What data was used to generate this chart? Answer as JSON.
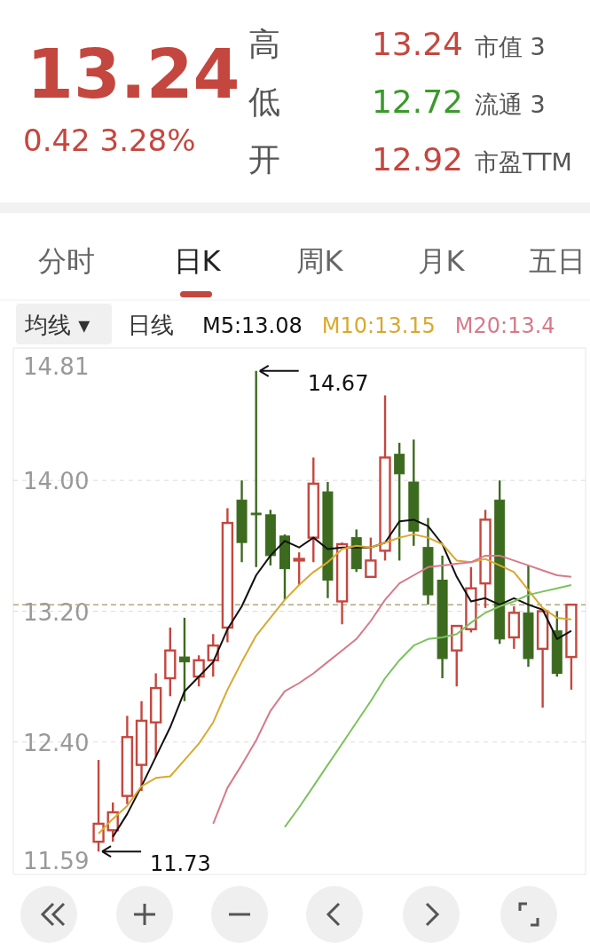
{
  "chart_data": {
    "type": "candlestick",
    "title": "13.24",
    "subtitle": "0.42  3.28%",
    "categories": [
      null,
      null,
      null,
      null,
      null,
      null,
      null,
      null,
      null,
      null,
      null,
      null,
      null,
      null,
      null,
      null,
      null,
      null,
      null,
      null,
      null,
      null,
      null,
      null,
      null,
      null,
      null,
      null,
      null,
      null,
      null,
      null,
      null,
      null
    ],
    "ohlc": [
      [
        11.79,
        12.29,
        11.73,
        11.9
      ],
      [
        11.86,
        12.03,
        11.79,
        11.97
      ],
      [
        12.07,
        12.56,
        12.02,
        12.43
      ],
      [
        12.26,
        12.65,
        12.1,
        12.53
      ],
      [
        12.52,
        12.82,
        12.31,
        12.73
      ],
      [
        12.79,
        13.1,
        12.68,
        12.96
      ],
      [
        12.92,
        13.16,
        12.65,
        12.89
      ],
      [
        12.8,
        12.93,
        12.74,
        12.9
      ],
      [
        12.9,
        13.06,
        12.8,
        12.99
      ],
      [
        13.1,
        13.83,
        13.01,
        13.74
      ],
      [
        13.88,
        14.0,
        13.5,
        13.62
      ],
      [
        13.8,
        14.67,
        13.47,
        13.79
      ],
      [
        13.79,
        13.82,
        13.48,
        13.54
      ],
      [
        13.66,
        13.67,
        13.27,
        13.46
      ],
      [
        13.51,
        13.56,
        13.36,
        13.52
      ],
      [
        13.65,
        14.14,
        13.5,
        13.98
      ],
      [
        13.93,
        13.99,
        13.28,
        13.39
      ],
      [
        13.26,
        13.62,
        13.12,
        13.61
      ],
      [
        13.65,
        13.7,
        13.44,
        13.46
      ],
      [
        13.41,
        13.65,
        13.41,
        13.51
      ],
      [
        13.57,
        14.52,
        13.51,
        14.14
      ],
      [
        14.16,
        14.23,
        13.51,
        14.04
      ],
      [
        13.99,
        14.25,
        13.6,
        13.69
      ],
      [
        13.59,
        13.77,
        13.24,
        13.3
      ],
      [
        13.39,
        13.54,
        12.79,
        12.91
      ],
      [
        12.96,
        13.11,
        12.74,
        13.11
      ],
      [
        13.09,
        13.47,
        13.07,
        13.34
      ],
      [
        13.37,
        13.82,
        13.22,
        13.76
      ],
      [
        13.88,
        14.0,
        13.0,
        13.03
      ],
      [
        13.04,
        13.23,
        12.97,
        13.19
      ],
      [
        13.19,
        13.48,
        12.86,
        12.91
      ],
      [
        12.97,
        13.2,
        12.61,
        13.2
      ],
      [
        13.08,
        13.2,
        12.8,
        12.82
      ],
      [
        12.92,
        13.24,
        12.72,
        13.24
      ]
    ],
    "colors": [
      "#c4473f",
      "#c4473f",
      "#c4473f",
      "#c4473f",
      "#c4473f",
      "#c4473f",
      "#3c6a1f",
      "#c4473f",
      "#c4473f",
      "#c4473f",
      "#3c6a1f",
      "#3c6a1f",
      "#3c6a1f",
      "#3c6a1f",
      "#c4473f",
      "#c4473f",
      "#3c6a1f",
      "#c4473f",
      "#3c6a1f",
      "#c4473f",
      "#c4473f",
      "#3c6a1f",
      "#3c6a1f",
      "#3c6a1f",
      "#3c6a1f",
      "#c4473f",
      "#c4473f",
      "#c4473f",
      "#3c6a1f",
      "#c4473f",
      "#3c6a1f",
      "#c4473f",
      "#3c6a1f",
      "#c4473f"
    ],
    "series": [
      {
        "type": "line",
        "name": "M5:13.08",
        "color": "#111111",
        "values": [
          null,
          11.82,
          11.96,
          12.13,
          12.31,
          12.49,
          12.71,
          12.8,
          12.89,
          13.09,
          13.23,
          13.42,
          13.54,
          13.63,
          13.59,
          13.65,
          13.58,
          13.59,
          13.59,
          13.59,
          13.62,
          13.75,
          13.76,
          13.72,
          13.61,
          13.41,
          13.26,
          13.28,
          13.24,
          13.28,
          13.24,
          13.21,
          13.03,
          13.08
        ]
      },
      {
        "type": "line",
        "name": "M10:13.15",
        "color": "#d9a830",
        "values": [
          11.84,
          11.93,
          12.01,
          12.13,
          12.18,
          12.19,
          12.29,
          12.39,
          12.52,
          12.72,
          12.89,
          13.05,
          13.16,
          13.27,
          13.36,
          13.44,
          13.5,
          13.58,
          13.6,
          13.59,
          13.62,
          13.65,
          13.67,
          13.65,
          13.61,
          13.51,
          13.5,
          13.52,
          13.48,
          13.44,
          13.33,
          13.22,
          13.16,
          13.15
        ]
      },
      {
        "type": "line",
        "name": "M20:13.4",
        "color": "#d67a8a",
        "values": [
          null,
          null,
          null,
          null,
          null,
          null,
          null,
          null,
          11.9,
          12.12,
          12.26,
          12.41,
          12.59,
          12.71,
          12.76,
          12.82,
          12.89,
          12.96,
          13.03,
          13.14,
          13.27,
          13.37,
          13.42,
          13.47,
          13.48,
          13.49,
          13.5,
          13.54,
          13.54,
          13.51,
          13.48,
          13.45,
          13.42,
          13.41
        ]
      },
      {
        "type": "line",
        "color": "#7cc25e",
        "values": [
          null,
          null,
          null,
          null,
          null,
          null,
          null,
          null,
          null,
          null,
          null,
          null,
          null,
          11.88,
          12.0,
          12.13,
          12.26,
          12.39,
          12.52,
          12.65,
          12.79,
          12.9,
          12.99,
          13.03,
          13.04,
          13.06,
          13.13,
          13.19,
          13.23,
          13.26,
          13.3,
          13.32,
          13.34,
          13.36
        ]
      }
    ],
    "ylim": [
      11.59,
      14.81
    ],
    "yticks": [
      14.81,
      {
        "value": 14,
        "label": "14.00"
      },
      {
        "value": 13.2,
        "label": "13.20"
      },
      {
        "value": 12.4,
        "label": "12.40"
      },
      11.59
    ],
    "grid": "y",
    "legend": "top",
    "ref_lines": [
      {
        "axis": "y",
        "value": 13.24,
        "color": "#b3a67e",
        "line_style": "dashed"
      }
    ],
    "annotations": [
      "高",
      "13.24",
      "低",
      "12.72",
      "开",
      "12.92",
      "市值 3",
      "流通 3",
      "市盈TTM",
      "分时",
      "日K",
      "周K",
      "月K",
      "五日",
      "均线 ▾",
      "日线",
      "14.67",
      "11.73"
    ]
  }
}
